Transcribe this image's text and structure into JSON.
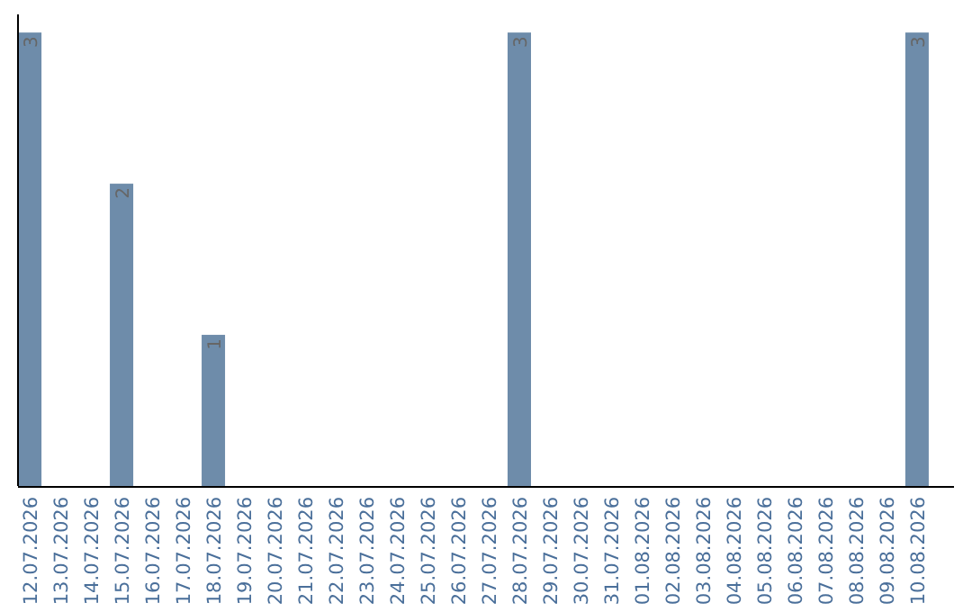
{
  "chart_data": {
    "type": "bar",
    "categories": [
      "12.07.2026",
      "13.07.2026",
      "14.07.2026",
      "15.07.2026",
      "16.07.2026",
      "17.07.2026",
      "18.07.2026",
      "19.07.2026",
      "20.07.2026",
      "21.07.2026",
      "22.07.2026",
      "23.07.2026",
      "24.07.2026",
      "25.07.2026",
      "26.07.2026",
      "27.07.2026",
      "28.07.2026",
      "29.07.2026",
      "30.07.2026",
      "31.07.2026",
      "01.08.2026",
      "02.08.2026",
      "03.08.2026",
      "04.08.2026",
      "05.08.2026",
      "06.08.2026",
      "07.08.2026",
      "08.08.2026",
      "09.08.2026",
      "10.08.2026"
    ],
    "values": [
      3,
      0,
      0,
      2,
      0,
      0,
      1,
      0,
      0,
      0,
      0,
      0,
      0,
      0,
      0,
      0,
      3,
      0,
      0,
      0,
      0,
      0,
      0,
      0,
      0,
      0,
      0,
      0,
      0,
      3
    ],
    "value_labels": [
      "3",
      null,
      null,
      "2",
      null,
      null,
      "1",
      null,
      null,
      null,
      null,
      null,
      null,
      null,
      null,
      null,
      "3",
      null,
      null,
      null,
      null,
      null,
      null,
      null,
      null,
      null,
      null,
      null,
      null,
      "3"
    ],
    "color": "#6e8caa"
  }
}
